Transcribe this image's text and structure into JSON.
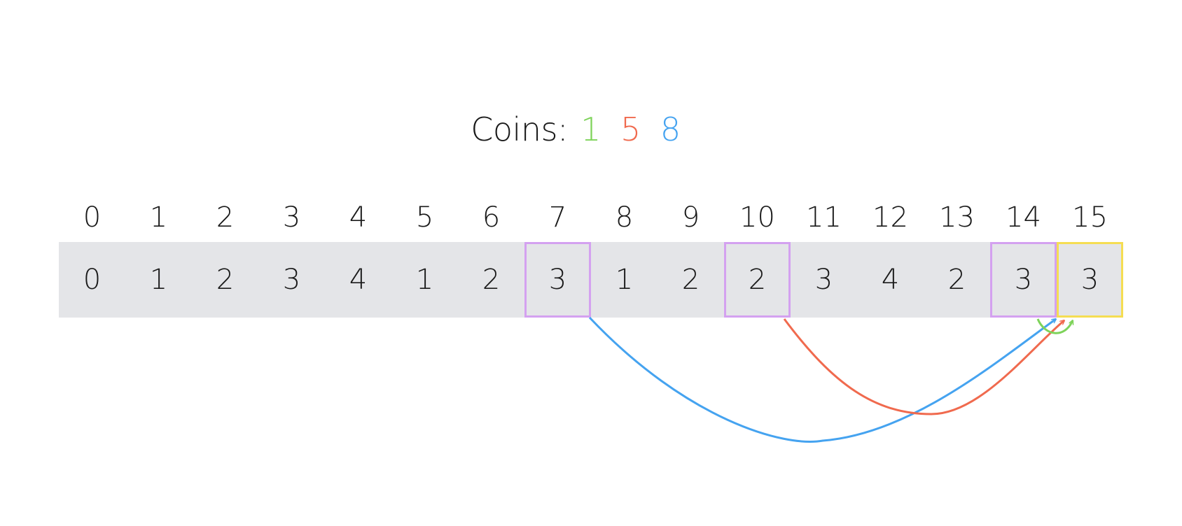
{
  "title": {
    "label": "Coins:",
    "coins": [
      {
        "value": "1",
        "color": "#7ed35a"
      },
      {
        "value": "5",
        "color": "#f06a4e"
      },
      {
        "value": "8",
        "color": "#45a3f0"
      }
    ]
  },
  "indices": [
    "0",
    "1",
    "2",
    "3",
    "4",
    "5",
    "6",
    "7",
    "8",
    "9",
    "10",
    "11",
    "12",
    "13",
    "14",
    "15"
  ],
  "values": [
    "0",
    "1",
    "2",
    "3",
    "4",
    "1",
    "2",
    "3",
    "1",
    "2",
    "2",
    "3",
    "4",
    "2",
    "3",
    "3"
  ],
  "highlights": {
    "candidate_indices": [
      7,
      10,
      14
    ],
    "candidate_color": "#d4a1f0",
    "target_index": 15,
    "target_color": "#f5dd52"
  },
  "arrows": [
    {
      "from_index": 7,
      "to_index": 15,
      "coin": "8",
      "color": "#45a3f0"
    },
    {
      "from_index": 10,
      "to_index": 15,
      "coin": "5",
      "color": "#f06a4e"
    },
    {
      "from_index": 14,
      "to_index": 15,
      "coin": "1",
      "color": "#7ed35a"
    }
  ]
}
